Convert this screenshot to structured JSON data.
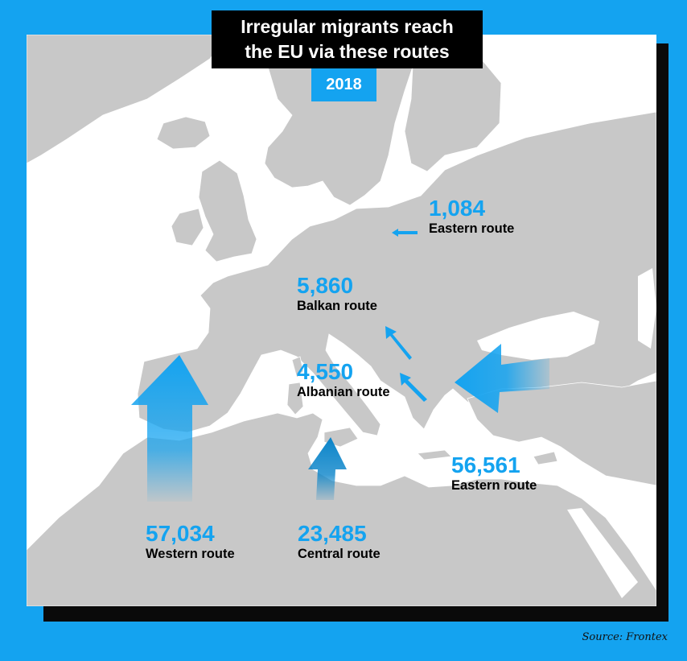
{
  "title": {
    "line1": "Irregular migrants reach",
    "line2": "the EU via these routes"
  },
  "year": "2018",
  "routes": [
    {
      "id": "eastern-land",
      "value": "1,084",
      "label": "Eastern route"
    },
    {
      "id": "balkan",
      "value": "5,860",
      "label": "Balkan route"
    },
    {
      "id": "albanian",
      "value": "4,550",
      "label": "Albanian route"
    },
    {
      "id": "eastern-med",
      "value": "56,561",
      "label": "Eastern route"
    },
    {
      "id": "western",
      "value": "57,034",
      "label": "Western route"
    },
    {
      "id": "central",
      "value": "23,485",
      "label": "Central route"
    }
  ],
  "source": "Source: Frontex",
  "colors": {
    "background": "#14a3f0",
    "accent": "#14a3f0",
    "land": "#c8c8c8",
    "sea": "#ffffff",
    "arrow_light": "#7fd0fa",
    "arrow_dark": "#0a84c9"
  }
}
